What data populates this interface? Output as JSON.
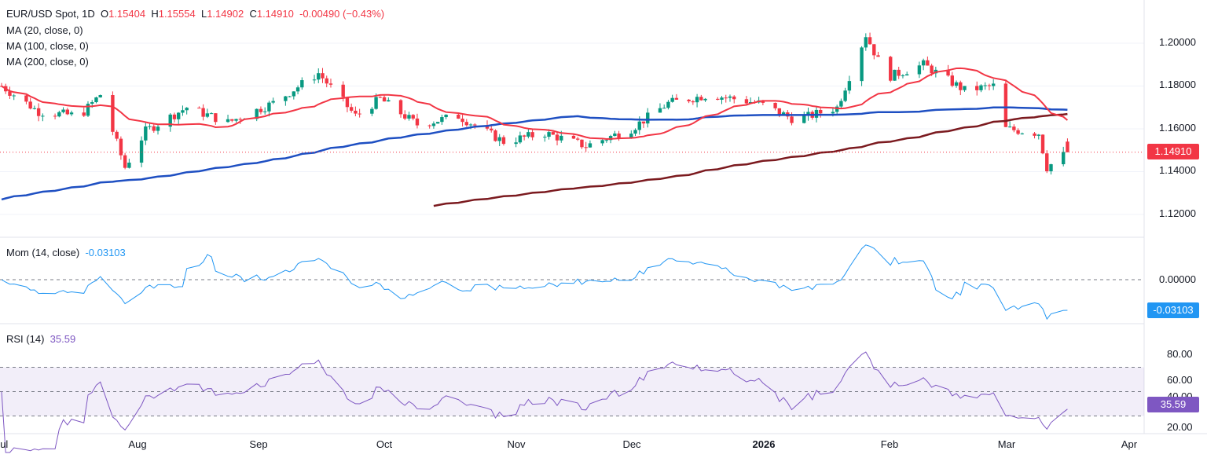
{
  "header": {
    "symbol": "EUR/USD Spot, 1D",
    "o_label": "O",
    "o": "1.15404",
    "h_label": "H",
    "h": "1.15554",
    "l_label": "L",
    "l": "1.14902",
    "c_label": "C",
    "c": "1.14910",
    "change": "-0.00490 (−0.43%)"
  },
  "ma_labels": [
    "MA (20, close, 0)",
    "MA (100, close, 0)",
    "MA (200, close, 0)"
  ],
  "mom": {
    "label": "Mom (14, close)",
    "value": "-0.03103"
  },
  "rsi": {
    "label": "RSI (14)",
    "value": "35.59"
  },
  "price_axis": [
    "1.20000",
    "1.18000",
    "1.16000",
    "1.14000",
    "1.12000"
  ],
  "mom_axis": [
    "0.00000"
  ],
  "rsi_axis": [
    "80.00",
    "60.00",
    "40.00",
    "20.00"
  ],
  "last_price": "1.14910",
  "x_axis": [
    "Jul",
    "Aug",
    "Sep",
    "Oct",
    "Nov",
    "Dec",
    "2026",
    "Feb",
    "Mar",
    "Apr"
  ],
  "colors": {
    "up": "#089981",
    "down": "#f23645",
    "ma20": "#f23645",
    "ma100": "#1e4fc2",
    "ma200": "#7b1a1f",
    "mom": "#2196f3",
    "rsi": "#7e57c2"
  },
  "chart_data": {
    "type": "candlestick",
    "ylim": [
      1.1,
      1.21
    ],
    "approx_close_path": [
      [
        "2025-07-01",
        1.18
      ],
      [
        "2025-07-10",
        1.168
      ],
      [
        "2025-07-20",
        1.166
      ],
      [
        "2025-07-25",
        1.176
      ],
      [
        "2025-07-31",
        1.142
      ],
      [
        "2025-08-05",
        1.159
      ],
      [
        "2025-08-15",
        1.17
      ],
      [
        "2025-08-25",
        1.163
      ],
      [
        "2025-09-05",
        1.172
      ],
      [
        "2025-09-16",
        1.186
      ],
      [
        "2025-09-25",
        1.166
      ],
      [
        "2025-10-01",
        1.174
      ],
      [
        "2025-10-10",
        1.162
      ],
      [
        "2025-10-20",
        1.166
      ],
      [
        "2025-10-31",
        1.154
      ],
      [
        "2025-11-10",
        1.158
      ],
      [
        "2025-11-20",
        1.152
      ],
      [
        "2025-12-01",
        1.16
      ],
      [
        "2025-12-10",
        1.172
      ],
      [
        "2025-12-20",
        1.176
      ],
      [
        "2026-01-01",
        1.172
      ],
      [
        "2026-01-10",
        1.164
      ],
      [
        "2026-01-20",
        1.17
      ],
      [
        "2026-01-27",
        1.204
      ],
      [
        "2026-02-01",
        1.184
      ],
      [
        "2026-02-10",
        1.19
      ],
      [
        "2026-02-20",
        1.178
      ],
      [
        "2026-02-27",
        1.18
      ],
      [
        "2026-03-02",
        1.16
      ],
      [
        "2026-03-10",
        1.158
      ],
      [
        "2026-03-12",
        1.142
      ],
      [
        "2026-03-17",
        1.1491
      ]
    ],
    "mom_last": -0.03103,
    "rsi_last": 35.59
  }
}
